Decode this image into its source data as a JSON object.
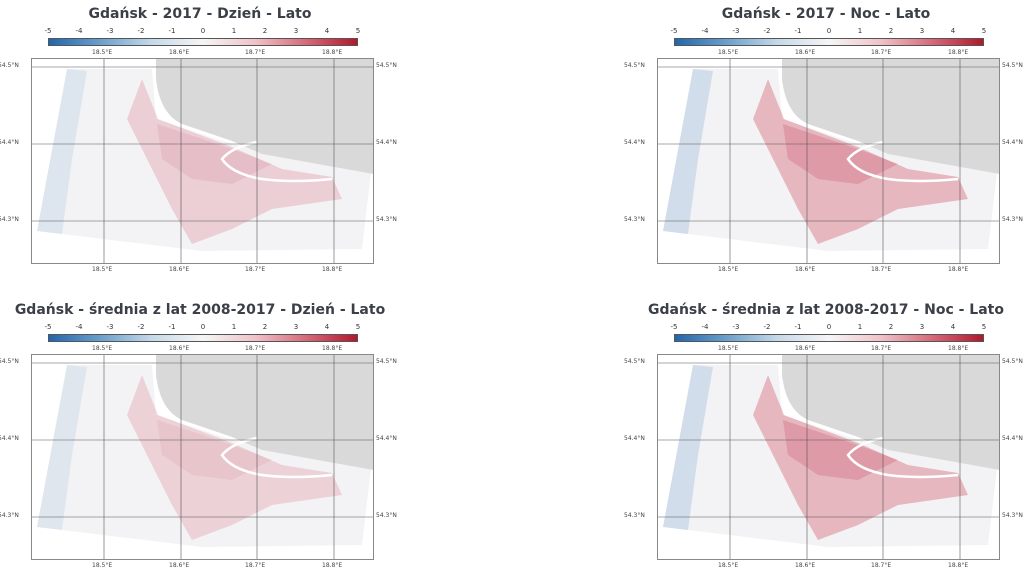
{
  "colorbar": {
    "ticks": [
      "-5",
      "-4",
      "-3",
      "-2",
      "-1",
      "0",
      "1",
      "2",
      "3",
      "4",
      "5"
    ],
    "colors": [
      "#2166ac",
      "#6a9fcc",
      "#c5d9ea",
      "#f5f5f5",
      "#f0c3c9",
      "#d66a7a",
      "#b2182b"
    ]
  },
  "axes": {
    "lon_labels": [
      "18.5°E",
      "18.6°E",
      "18.7°E",
      "18.8°E"
    ],
    "lat_labels": [
      "54.5°N",
      "54.4°N",
      "54.3°N"
    ]
  },
  "colors": {
    "land": "#d9d9d9",
    "grid": "#555555",
    "frame": "#888888"
  },
  "panels": [
    {
      "title": "Gdańsk - 2017 - Dzień - Lato",
      "intensity": 0.35
    },
    {
      "title": "Gdańsk - 2017 - Noc - Lato",
      "intensity": 0.75
    },
    {
      "title": "Gdańsk - średnia z lat 2008-2017 - Dzień - Lato",
      "intensity": 0.3
    },
    {
      "title": "Gdańsk - średnia z lat 2008-2017 - Noc - Lato",
      "intensity": 0.75
    }
  ]
}
